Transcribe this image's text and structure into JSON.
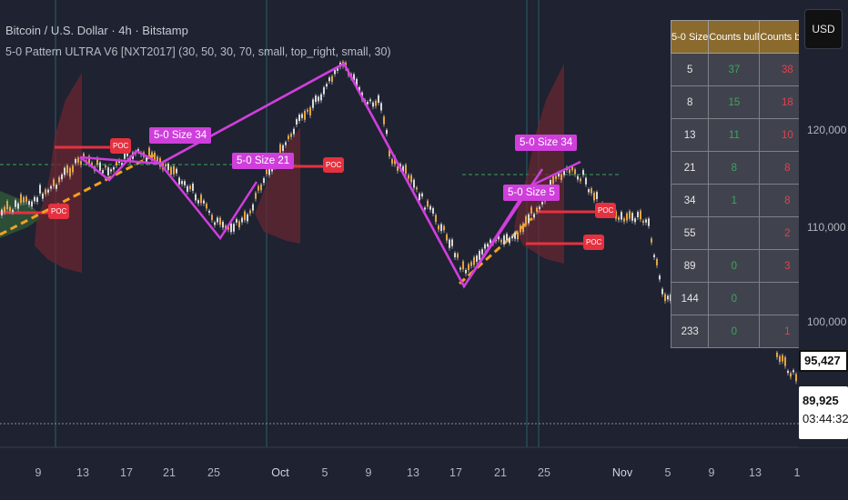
{
  "header": {
    "title": "Bitcoin / U.S. Dollar · 4h · Bitstamp",
    "indicator": "5-0 Pattern ULTRA V6 [NXT2017] (30, 50, 30, 70, small, top_right, small, 30)"
  },
  "currency_button": "USD",
  "price_axis": {
    "ticks": [
      "120,000",
      "110,000",
      "100,000"
    ],
    "current_price": "95,427",
    "mark_price": "89,925",
    "countdown": "03:44:32"
  },
  "time_axis": {
    "ticks": [
      "9",
      "13",
      "17",
      "21",
      "25",
      "Oct",
      "5",
      "9",
      "13",
      "17",
      "21",
      "25",
      "Nov",
      "5",
      "9",
      "13",
      "1"
    ]
  },
  "stats_table": {
    "headers": [
      "5-0 Size",
      "Counts bull",
      "Counts bear"
    ],
    "rows": [
      {
        "size": "5",
        "bull": "37",
        "bear": "38"
      },
      {
        "size": "8",
        "bull": "15",
        "bear": "18"
      },
      {
        "size": "13",
        "bull": "11",
        "bear": "10"
      },
      {
        "size": "21",
        "bull": "8",
        "bear": "8"
      },
      {
        "size": "34",
        "bull": "1",
        "bear": "8"
      },
      {
        "size": "55",
        "bull": "",
        "bear": "2"
      },
      {
        "size": "89",
        "bull": "0",
        "bear": "3"
      },
      {
        "size": "144",
        "bull": "0",
        "bear": ""
      },
      {
        "size": "233",
        "bull": "0",
        "bear": "1"
      }
    ]
  },
  "pattern_labels": [
    "5-0 Size 34",
    "5-0 Size 21",
    "5-0 Size 34",
    "5-0 Size 5"
  ],
  "poc_label": "POC",
  "colors": {
    "background": "#1f2230",
    "pattern": "#cf3fdb",
    "poc": "#e5313f",
    "bull": "#3aa65a",
    "bear": "#e0424f",
    "trend": "#f0a020",
    "header_gold": "#8b6a2e"
  }
}
